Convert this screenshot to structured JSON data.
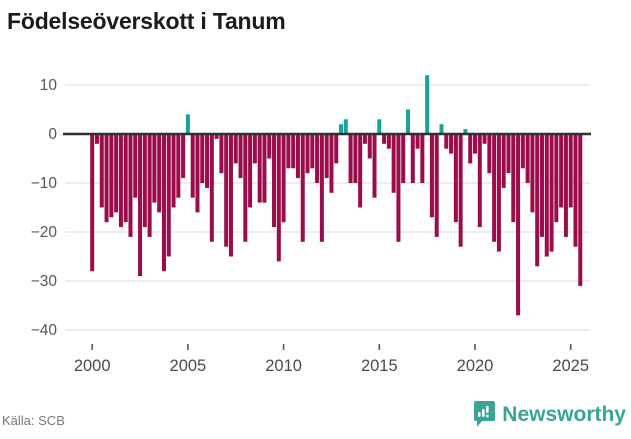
{
  "title": "Födelseöverskott i Tanum",
  "source": "Källa: SCB",
  "logo": {
    "text": "Newsworthy",
    "icon": "newsworthy-speech-bubble-bar-chart-icon"
  },
  "colors": {
    "positive_bar": "#17a2a0",
    "negative_bar": "#9b0c4b",
    "logo_teal": "#3aa596",
    "zero_line": "#303030",
    "gridline": "#e6e6e6",
    "axis_tick_mark": "#55565a",
    "axis_text": "#55565a",
    "title_text": "#1c1c1c",
    "source_text": "#77787a",
    "background": "#ffffff"
  },
  "chart_data": {
    "type": "bar",
    "title": "Födelseöverskott i Tanum",
    "frequency": "quarterly",
    "start_period": "2000-Q1",
    "end_period": "2025-Q3",
    "values": [
      -28,
      -2,
      -15,
      -18,
      -17,
      -16,
      -19,
      -18,
      -21,
      -13,
      -29,
      -19,
      -21,
      -14,
      -16,
      -28,
      -25,
      -15,
      -13,
      -9,
      4,
      -13,
      -16,
      -10,
      -11,
      -22,
      -1,
      -8,
      -23,
      -25,
      -6,
      -9,
      -22,
      -15,
      -6,
      -14,
      -14,
      -5,
      -19,
      -26,
      -18,
      -7,
      -7,
      -9,
      -22,
      -8,
      -7,
      -10,
      -22,
      -9,
      -12,
      -6,
      2,
      3,
      -10,
      -10,
      -15,
      -2,
      -5,
      -13,
      3,
      -2,
      -3,
      -12,
      -22,
      -10,
      5,
      -10,
      -3,
      -10,
      12,
      -17,
      -21,
      2,
      -3,
      -4,
      -18,
      -23,
      1,
      -6,
      -4,
      -19,
      -2,
      -8,
      -22,
      -24,
      -11,
      -8,
      -18,
      -37,
      -7,
      -10,
      -16,
      -27,
      -21,
      -25,
      -24,
      -18,
      -15,
      -21,
      -15,
      -23,
      -31
    ],
    "ylim": [
      -42,
      13
    ],
    "yticks": [
      10,
      0,
      -10,
      -20,
      -30,
      -40
    ],
    "xticks": [
      2000,
      2005,
      2010,
      2015,
      2020,
      2025
    ],
    "grid": "horizontal",
    "legend": "none"
  }
}
